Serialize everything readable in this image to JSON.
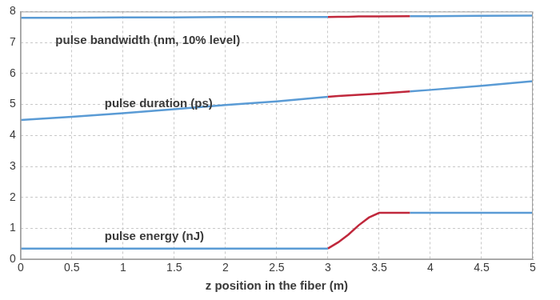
{
  "chart_data": {
    "type": "line",
    "x_label": "z position in the fiber (m)",
    "x": [
      0,
      0.5,
      1,
      1.5,
      2,
      2.5,
      3,
      3.1,
      3.2,
      3.3,
      3.4,
      3.5,
      3.8,
      4,
      4.5,
      5
    ],
    "series": [
      {
        "name": "pulse bandwidth (nm, 10% level)",
        "color": "#5a9bd5",
        "values": [
          7.8,
          7.8,
          7.81,
          7.81,
          7.82,
          7.82,
          7.82,
          null,
          null,
          null,
          null,
          null,
          null,
          null,
          null,
          null
        ]
      },
      {
        "color": "#c0283c",
        "values": [
          null,
          null,
          null,
          null,
          null,
          null,
          7.82,
          7.83,
          7.83,
          7.84,
          7.84,
          7.84,
          7.85,
          null,
          null,
          null
        ]
      },
      {
        "color": "#5a9bd5",
        "values": [
          null,
          null,
          null,
          null,
          null,
          null,
          null,
          null,
          null,
          null,
          null,
          null,
          7.85,
          7.85,
          7.86,
          7.87
        ]
      },
      {
        "name": "pulse duration (ps)",
        "color": "#5a9bd5",
        "values": [
          4.5,
          4.6,
          4.72,
          4.85,
          4.98,
          5.1,
          5.25,
          null,
          null,
          null,
          null,
          null,
          null,
          null,
          null,
          null
        ]
      },
      {
        "color": "#c0283c",
        "values": [
          null,
          null,
          null,
          null,
          null,
          null,
          5.25,
          5.27,
          5.29,
          5.31,
          5.33,
          5.35,
          5.42,
          null,
          null,
          null
        ]
      },
      {
        "color": "#5a9bd5",
        "values": [
          null,
          null,
          null,
          null,
          null,
          null,
          null,
          null,
          null,
          null,
          null,
          null,
          5.42,
          5.47,
          5.6,
          5.75
        ]
      },
      {
        "name": "pulse energy (nJ)",
        "color": "#5a9bd5",
        "values": [
          0.35,
          0.35,
          0.35,
          0.35,
          0.35,
          0.35,
          0.35,
          null,
          null,
          null,
          null,
          null,
          null,
          null,
          null,
          null
        ]
      },
      {
        "color": "#c0283c",
        "values": [
          null,
          null,
          null,
          null,
          null,
          null,
          0.35,
          0.55,
          0.8,
          1.1,
          1.35,
          1.5,
          1.5,
          null,
          null,
          null
        ]
      },
      {
        "color": "#5a9bd5",
        "values": [
          null,
          null,
          null,
          null,
          null,
          null,
          null,
          null,
          null,
          null,
          null,
          null,
          1.5,
          1.5,
          1.5,
          1.5
        ]
      }
    ],
    "xlim": [
      0,
      5
    ],
    "xticks": [
      0,
      0.5,
      1,
      1.5,
      2,
      2.5,
      3,
      3.5,
      4,
      4.5,
      5
    ],
    "ylim": [
      0,
      8
    ],
    "yticks": [
      0,
      1,
      2,
      3,
      4,
      5,
      6,
      7,
      8
    ],
    "grid": true
  }
}
